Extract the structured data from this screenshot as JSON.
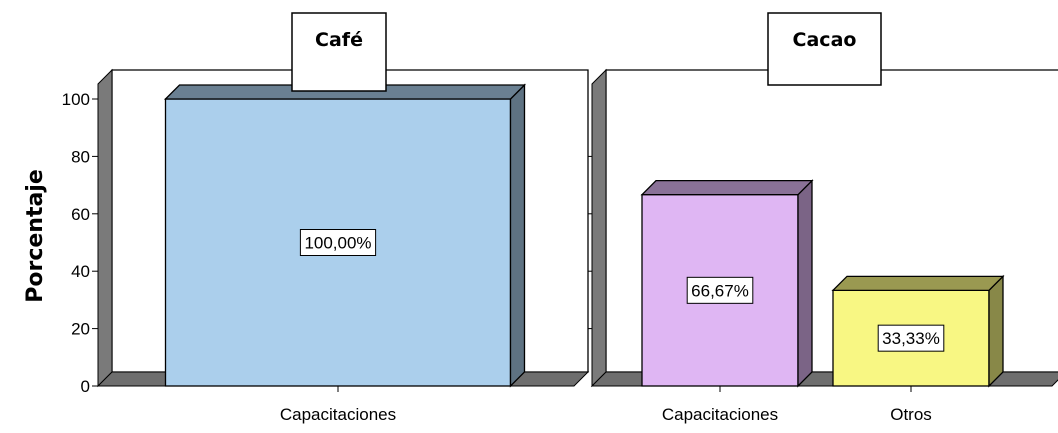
{
  "chart_data": [
    {
      "type": "bar",
      "title": "Café",
      "ylabel": "Porcentaje",
      "xlabel": "",
      "ylim": [
        0,
        100
      ],
      "yticks": [
        0,
        20,
        40,
        60,
        80,
        100
      ],
      "categories": [
        "Capacitaciones"
      ],
      "values": [
        100
      ],
      "data_labels": [
        "100,00%"
      ],
      "colors": [
        "#abcfec"
      ],
      "grid": false,
      "style": "3d"
    },
    {
      "type": "bar",
      "title": "Cacao",
      "ylabel": "",
      "xlabel": "",
      "ylim": [
        0,
        100
      ],
      "categories": [
        "Capacitaciones",
        "Otros"
      ],
      "values": [
        66.67,
        33.33
      ],
      "data_labels": [
        "66,67%",
        "33,33%"
      ],
      "colors": [
        "#dfb6f3",
        "#f8f783"
      ],
      "grid": false,
      "style": "3d"
    }
  ]
}
